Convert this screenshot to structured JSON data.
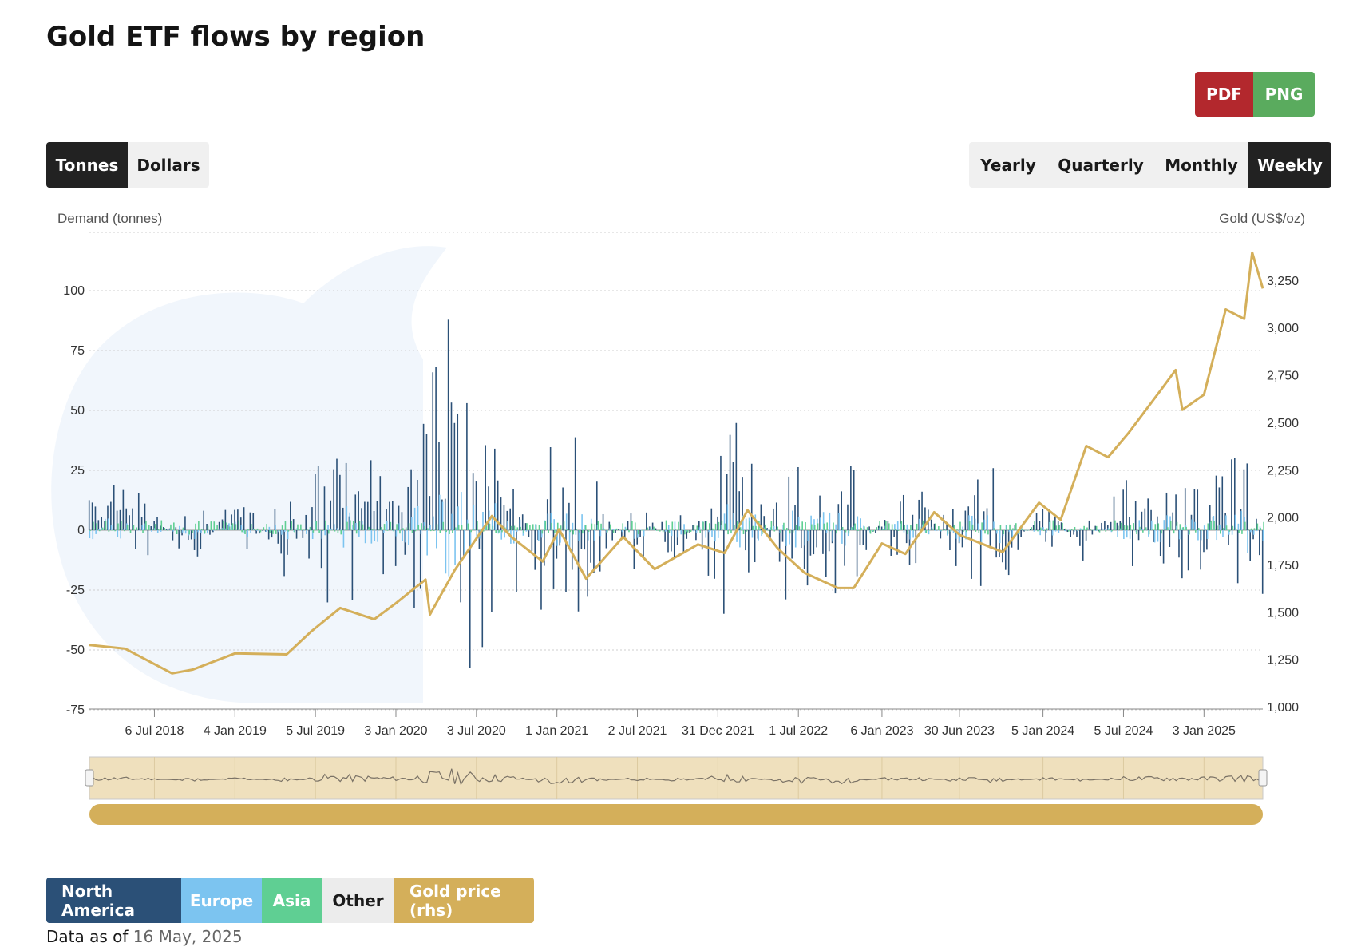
{
  "title": "Gold ETF flows by region",
  "export": {
    "pdf": "PDF",
    "png": "PNG"
  },
  "units": [
    {
      "label": "Tonnes",
      "active": true
    },
    {
      "label": "Dollars",
      "active": false
    }
  ],
  "periods": [
    {
      "label": "Yearly",
      "active": false
    },
    {
      "label": "Quarterly",
      "active": false
    },
    {
      "label": "Monthly",
      "active": false
    },
    {
      "label": "Weekly",
      "active": true
    }
  ],
  "legend": [
    {
      "label": "North America",
      "color": "#2b5077",
      "text_color": "#ffffff"
    },
    {
      "label": "Europe",
      "color": "#7cc4f0",
      "text_color": "#ffffff"
    },
    {
      "label": "Asia",
      "color": "#5fcf93",
      "text_color": "#ffffff"
    },
    {
      "label": "Other",
      "color": "#ececec",
      "text_color": "#1a1a1a"
    },
    {
      "label": "Gold price (rhs)",
      "color": "#d4af5a",
      "text_color": "#ffffff"
    }
  ],
  "data_as_of": {
    "label": "Data as of",
    "date": "16 May, 2025"
  },
  "chart_data": {
    "type": "bar",
    "ylabel": "Demand (tonnes)",
    "y2label": "Gold (US$/oz)",
    "ylim": [
      -75,
      125
    ],
    "y2lim": [
      1000,
      3500
    ],
    "yticks": [
      "100",
      "75",
      "50",
      "25",
      "0",
      "-25",
      "-50",
      "-75"
    ],
    "y2ticks": [
      "3,250",
      "3,000",
      "2,750",
      "2,500",
      "2,250",
      "2,000",
      "1,750",
      "1,500",
      "1,250",
      "1,000"
    ],
    "x_range": [
      "2018-02-09",
      "2025-05-16"
    ],
    "x_ticks": [
      "6 Jul 2018",
      "4 Jan 2019",
      "5 Jul 2019",
      "3 Jan 2020",
      "3 Jul 2020",
      "1 Jan 2021",
      "2 Jul 2021",
      "31 Dec 2021",
      "1 Jul 2022",
      "6 Jan 2023",
      "30 Jun 2023",
      "5 Jan 2024",
      "5 Jul 2024",
      "3 Jan 2025"
    ],
    "grid": true,
    "legend_position": "bottom",
    "series": [
      {
        "name": "Gold price (rhs)",
        "type": "line",
        "axis": "right",
        "color": "#d4af5a",
        "dates": [
          "2018-02-09",
          "2018-05-01",
          "2018-08-15",
          "2018-10-01",
          "2019-01-04",
          "2019-05-01",
          "2019-06-25",
          "2019-08-30",
          "2019-11-15",
          "2020-01-03",
          "2020-03-10",
          "2020-03-20",
          "2020-05-15",
          "2020-08-07",
          "2020-09-20",
          "2020-11-30",
          "2021-01-06",
          "2021-03-08",
          "2021-05-31",
          "2021-08-10",
          "2021-11-16",
          "2022-01-15",
          "2022-03-08",
          "2022-05-15",
          "2022-07-15",
          "2022-09-28",
          "2022-11-03",
          "2023-01-06",
          "2023-02-28",
          "2023-05-04",
          "2023-07-01",
          "2023-10-06",
          "2023-12-27",
          "2024-02-14",
          "2024-04-12",
          "2024-05-31",
          "2024-07-17",
          "2024-09-26",
          "2024-10-31",
          "2024-11-15",
          "2025-01-03",
          "2025-02-21",
          "2025-04-04",
          "2025-04-22",
          "2025-05-16"
        ],
        "values": [
          1330,
          1310,
          1180,
          1200,
          1285,
          1280,
          1400,
          1525,
          1465,
          1550,
          1675,
          1490,
          1725,
          2010,
          1900,
          1770,
          1940,
          1680,
          1900,
          1730,
          1860,
          1815,
          2040,
          1840,
          1710,
          1630,
          1630,
          1865,
          1810,
          2030,
          1910,
          1820,
          2080,
          1990,
          2380,
          2320,
          2450,
          2670,
          2780,
          2570,
          2650,
          3100,
          3050,
          3400,
          3210
        ]
      },
      {
        "name": "North America",
        "type": "bar",
        "color": "#2b5077"
      },
      {
        "name": "Europe",
        "type": "bar",
        "color": "#7cc4f0"
      },
      {
        "name": "Asia",
        "type": "bar",
        "color": "#5fcf93"
      },
      {
        "name": "Other",
        "type": "bar",
        "color": "#ececec"
      }
    ],
    "flow_profile": {
      "dates": [
        "2018-02-09",
        "2018-06-01",
        "2018-10-01",
        "2019-01-15",
        "2019-05-01",
        "2019-08-01",
        "2019-11-01",
        "2020-01-15",
        "2020-03-15",
        "2020-05-01",
        "2020-07-15",
        "2020-10-01",
        "2020-12-01",
        "2021-02-01",
        "2021-04-01",
        "2021-07-01",
        "2021-10-01",
        "2022-01-01",
        "2022-02-25",
        "2022-04-01",
        "2022-06-01",
        "2022-08-01",
        "2022-10-15",
        "2023-01-15",
        "2023-04-01",
        "2023-07-01",
        "2023-10-01",
        "2024-01-15",
        "2024-04-01",
        "2024-07-01",
        "2024-10-01",
        "2025-01-01",
        "2025-03-01",
        "2025-04-15",
        "2025-05-16"
      ],
      "envelope": [
        20,
        18,
        -18,
        20,
        -22,
        45,
        32,
        18,
        60,
        88,
        50,
        28,
        -38,
        -45,
        -22,
        20,
        -18,
        35,
        50,
        20,
        -35,
        -28,
        -38,
        15,
        20,
        -25,
        -28,
        20,
        -15,
        22,
        25,
        20,
        35,
        45,
        -28
      ]
    }
  }
}
